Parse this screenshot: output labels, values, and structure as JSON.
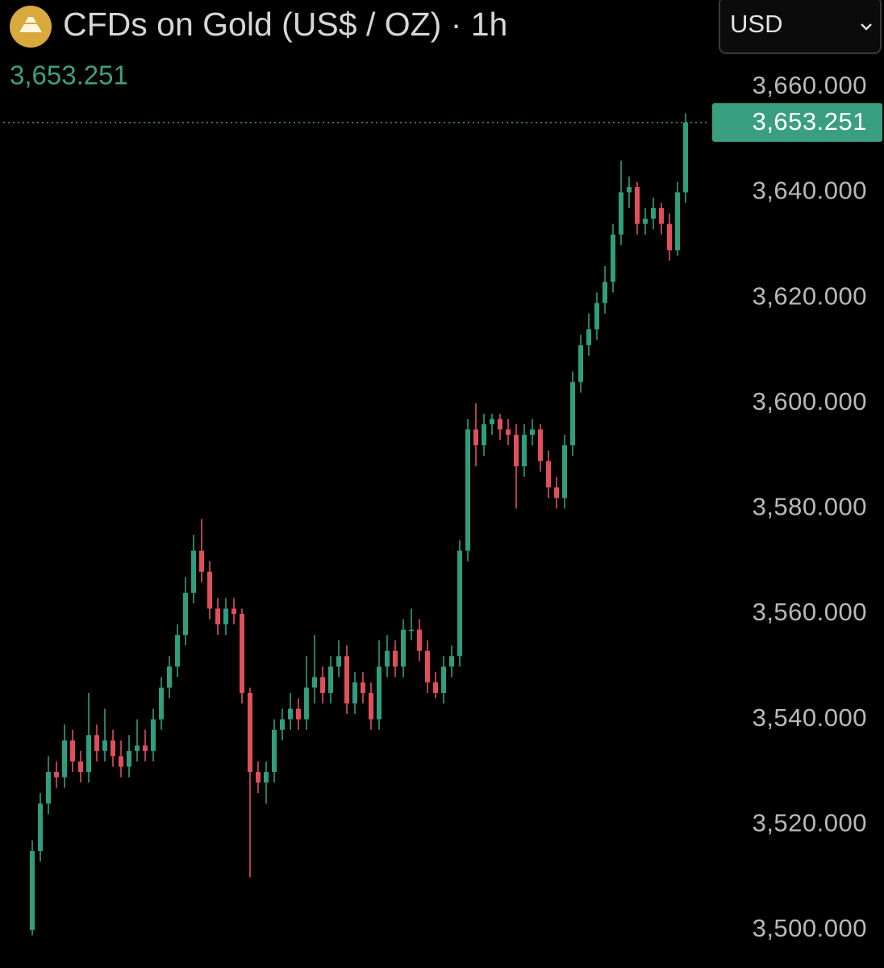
{
  "chart_data": {
    "type": "candlestick",
    "title": "CFDs on Gold (US$ / OZ) · 1h",
    "currency": "USD",
    "last_value": 3653.251,
    "last_value_label": "3,653.251",
    "up_color": "#2f9d7e",
    "down_color": "#e04f5a",
    "ylim": [
      3492.8,
      3676.5
    ],
    "yticks": [
      {
        "value": 3660,
        "label": "3,660.000"
      },
      {
        "value": 3640,
        "label": "3,640.000"
      },
      {
        "value": 3620,
        "label": "3,620.000"
      },
      {
        "value": 3600,
        "label": "3,600.000"
      },
      {
        "value": 3580,
        "label": "3,580.000"
      },
      {
        "value": 3560,
        "label": "3,560.000"
      },
      {
        "value": 3540,
        "label": "3,540.000"
      },
      {
        "value": 3520,
        "label": "3,520.000"
      },
      {
        "value": 3500,
        "label": "3,500.000"
      }
    ],
    "open": [
      3500,
      3515,
      3524,
      3530,
      3529,
      3536,
      3532,
      3530,
      3537,
      3534,
      3536,
      3533,
      3531,
      3534,
      3535,
      3534,
      3540,
      3546,
      3550,
      3556,
      3564,
      3572,
      3568,
      3561,
      3558,
      3561,
      3560,
      3545,
      3530,
      3528,
      3530,
      3538,
      3540,
      3542,
      3540,
      3546,
      3548,
      3545,
      3550,
      3552,
      3543,
      3547,
      3545,
      3540,
      3550,
      3553,
      3550,
      3557,
      3557,
      3553,
      3547,
      3545,
      3550,
      3552,
      3572,
      3595,
      3592,
      3596,
      3597,
      3595,
      3594,
      3588,
      3594,
      3595,
      3589,
      3584,
      3582,
      3592,
      3604,
      3611,
      3614,
      3619,
      3623,
      3632,
      3640,
      3641,
      3634,
      3635,
      3637,
      3634,
      3629,
      3640
    ],
    "high": [
      3517,
      3526,
      3533,
      3532,
      3539,
      3538,
      3534,
      3545,
      3539,
      3542,
      3538,
      3536,
      3537,
      3540,
      3538,
      3542,
      3548,
      3552,
      3558,
      3567,
      3575,
      3578,
      3570,
      3563,
      3563,
      3563,
      3561,
      3546,
      3532,
      3532,
      3540,
      3542,
      3545,
      3544,
      3552,
      3556,
      3550,
      3552,
      3555,
      3554,
      3549,
      3549,
      3547,
      3555,
      3556,
      3555,
      3559,
      3561,
      3559,
      3555,
      3549,
      3552,
      3554,
      3574,
      3597,
      3600,
      3598,
      3598,
      3598,
      3597,
      3596,
      3596,
      3597,
      3596,
      3591,
      3586,
      3594,
      3606,
      3613,
      3617,
      3621,
      3626,
      3634,
      3646,
      3643,
      3642,
      3637,
      3639,
      3638,
      3636,
      3642,
      3655
    ],
    "low": [
      3499,
      3513,
      3522,
      3527,
      3527,
      3530,
      3528,
      3528,
      3532,
      3532,
      3531,
      3529,
      3529,
      3532,
      3532,
      3532,
      3538,
      3544,
      3548,
      3554,
      3562,
      3566,
      3559,
      3556,
      3556,
      3558,
      3543,
      3510,
      3526,
      3524,
      3528,
      3536,
      3538,
      3538,
      3538,
      3543,
      3543,
      3543,
      3548,
      3541,
      3541,
      3543,
      3538,
      3538,
      3548,
      3548,
      3548,
      3555,
      3551,
      3545,
      3544,
      3543,
      3548,
      3550,
      3570,
      3588,
      3590,
      3594,
      3593,
      3592,
      3580,
      3586,
      3592,
      3587,
      3582,
      3580,
      3580,
      3590,
      3602,
      3609,
      3612,
      3617,
      3621,
      3630,
      3637,
      3632,
      3632,
      3633,
      3632,
      3627,
      3628,
      3638
    ],
    "close": [
      3515,
      3524,
      3530,
      3529,
      3536,
      3532,
      3530,
      3537,
      3534,
      3536,
      3533,
      3531,
      3534,
      3535,
      3534,
      3540,
      3546,
      3550,
      3556,
      3564,
      3572,
      3568,
      3561,
      3558,
      3561,
      3560,
      3545,
      3530,
      3528,
      3530,
      3538,
      3540,
      3542,
      3540,
      3546,
      3548,
      3545,
      3550,
      3552,
      3543,
      3547,
      3545,
      3540,
      3550,
      3553,
      3550,
      3557,
      3557,
      3553,
      3547,
      3545,
      3550,
      3552,
      3572,
      3595,
      3592,
      3596,
      3597,
      3595,
      3594,
      3588,
      3594,
      3595,
      3589,
      3584,
      3582,
      3592,
      3604,
      3611,
      3614,
      3619,
      3623,
      3632,
      3640,
      3641,
      3634,
      3635,
      3637,
      3634,
      3629,
      3640,
      3653.251
    ]
  }
}
